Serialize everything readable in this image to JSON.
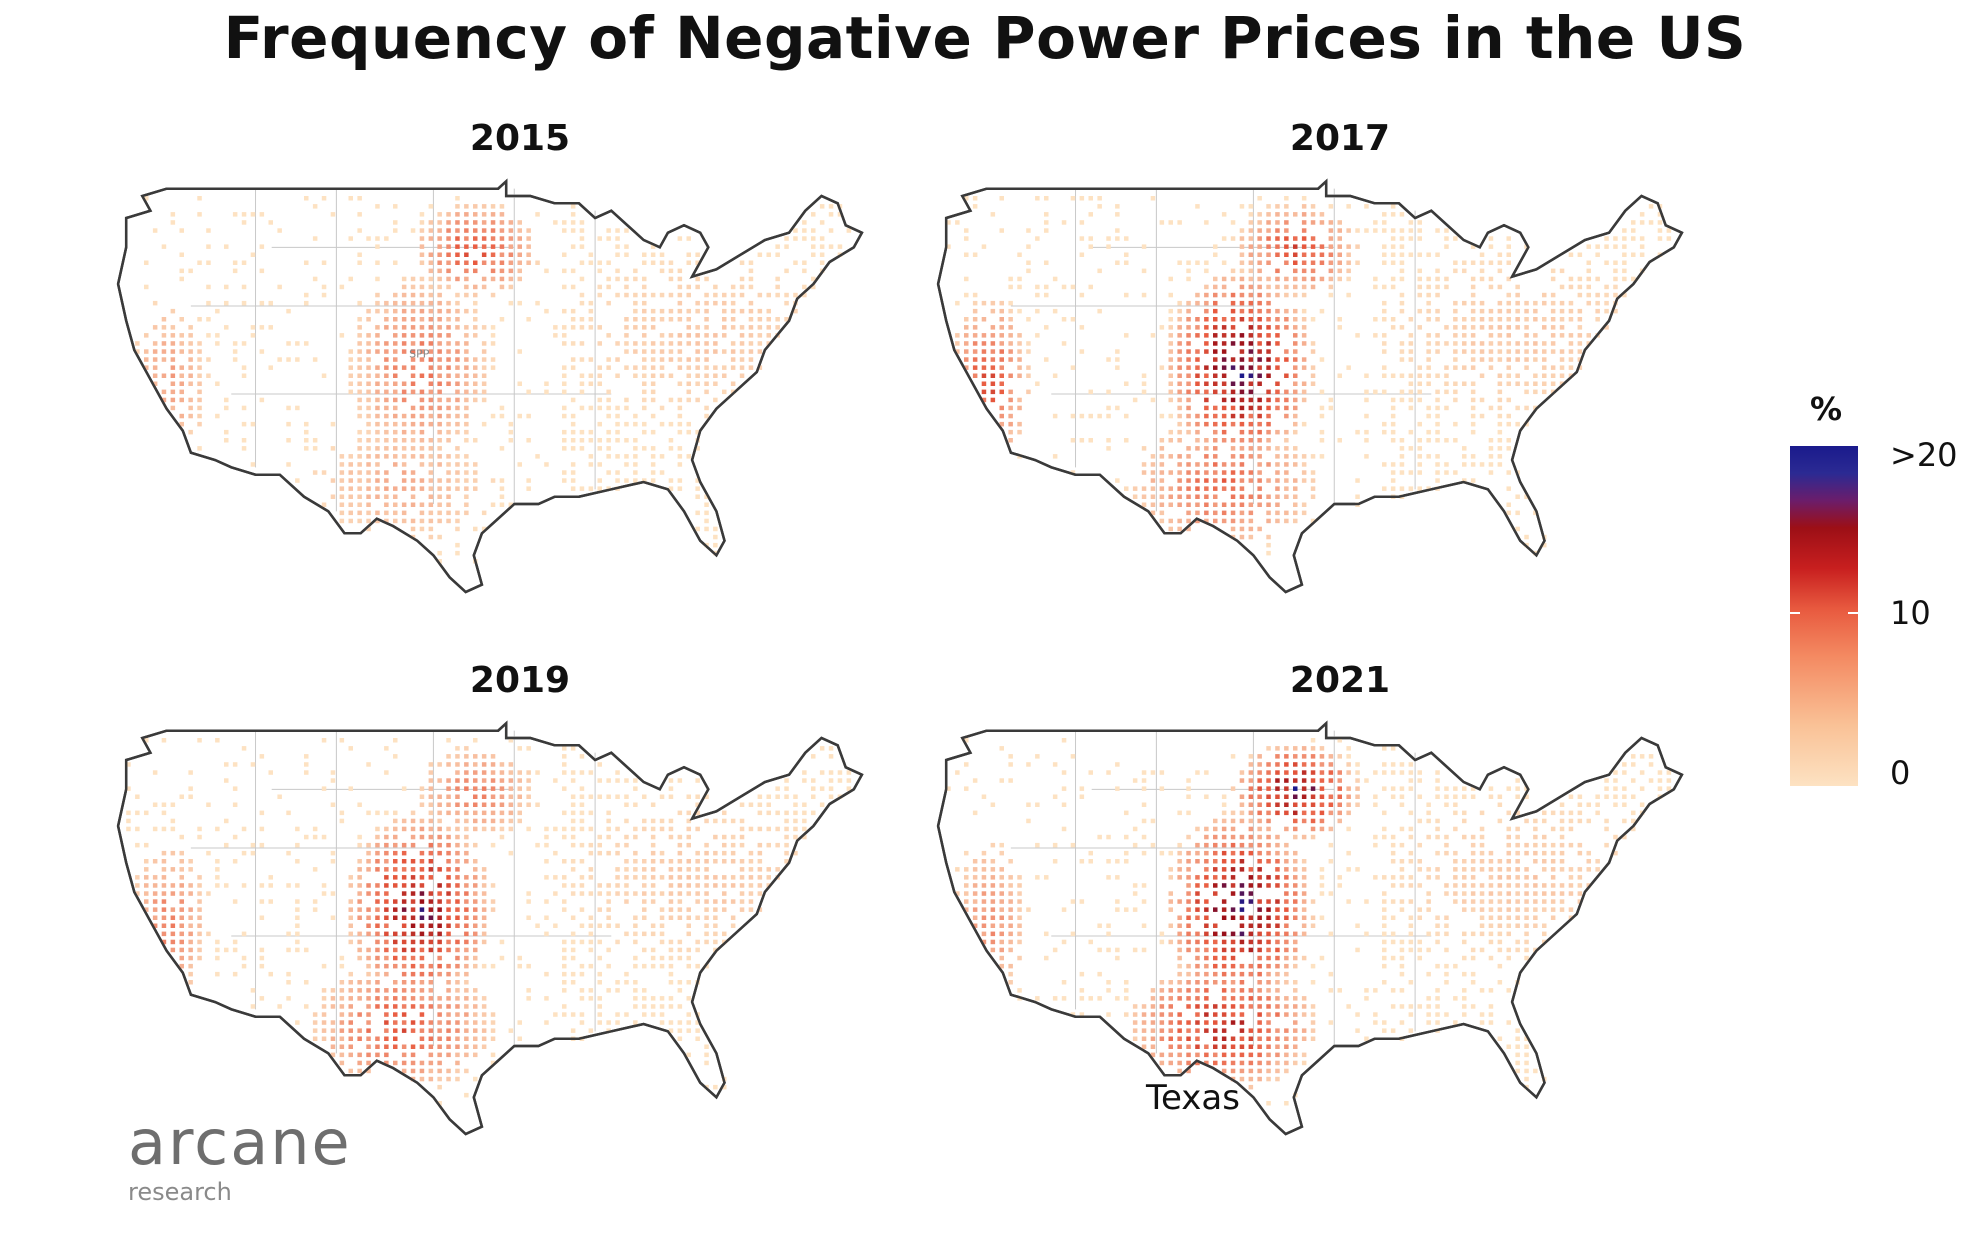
{
  "title": "Frequency of Negative Power Prices in the US",
  "panels": [
    {
      "year": "2015",
      "hotspots": [
        {
          "region": "SPP",
          "intensity": 0.4
        },
        {
          "region": "upper-midwest",
          "intensity": 0.55
        },
        {
          "region": "texas",
          "intensity": 0.2
        },
        {
          "region": "california",
          "intensity": 0.25
        },
        {
          "region": "east",
          "intensity": 0.1
        }
      ],
      "annotation": "SPP"
    },
    {
      "year": "2017",
      "hotspots": [
        {
          "region": "SPP",
          "intensity": 1.0
        },
        {
          "region": "upper-midwest",
          "intensity": 0.55
        },
        {
          "region": "texas",
          "intensity": 0.45
        },
        {
          "region": "california",
          "intensity": 0.55
        },
        {
          "region": "east",
          "intensity": 0.1
        }
      ]
    },
    {
      "year": "2019",
      "hotspots": [
        {
          "region": "SPP",
          "intensity": 0.85
        },
        {
          "region": "upper-midwest",
          "intensity": 0.35
        },
        {
          "region": "texas",
          "intensity": 0.5
        },
        {
          "region": "california",
          "intensity": 0.35
        },
        {
          "region": "east",
          "intensity": 0.1
        }
      ]
    },
    {
      "year": "2021",
      "hotspots": [
        {
          "region": "SPP",
          "intensity": 1.0
        },
        {
          "region": "upper-midwest",
          "intensity": 0.95
        },
        {
          "region": "texas",
          "intensity": 0.7
        },
        {
          "region": "california",
          "intensity": 0.3
        },
        {
          "region": "east",
          "intensity": 0.1
        }
      ],
      "annotation": "Texas"
    }
  ],
  "legend": {
    "title": "%",
    "labels": [
      ">20",
      "10",
      "0"
    ]
  },
  "logo": {
    "name": "arcane",
    "sub": "research"
  },
  "colors": {
    "low": "#fde2c2",
    "mid": "#e85a3f",
    "high": "#9c0f16",
    "max": "#1a1a8c"
  }
}
